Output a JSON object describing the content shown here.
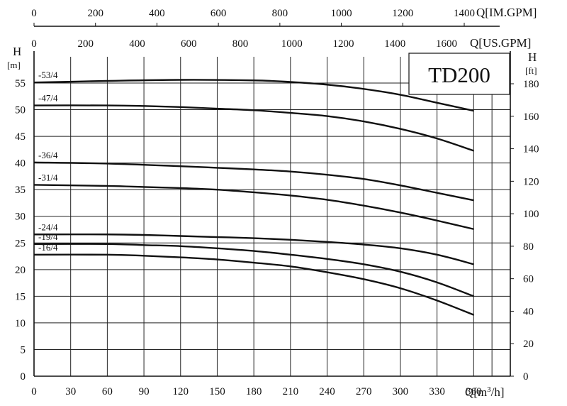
{
  "chart_data": {
    "type": "line",
    "title": "TD200",
    "xlabel": "Q[m³/h]",
    "xlabel_main": "Q[m",
    "xlabel_sup": "3",
    "xlabel_tail": "/h]",
    "ylabel": "H",
    "ylabel_unit": "[m]",
    "y2label": "H",
    "y2label_unit": "[ft]",
    "top_axis_label": "Q[IM.GPM]",
    "second_axis_label": "Q[US.GPM]",
    "xlim": [
      0,
      390
    ],
    "ylim": [
      0,
      60
    ],
    "x_ticks": [
      0,
      30,
      60,
      90,
      120,
      150,
      180,
      210,
      240,
      270,
      300,
      330,
      360
    ],
    "y_ticks": [
      0,
      5,
      10,
      15,
      20,
      25,
      30,
      35,
      40,
      45,
      50,
      55
    ],
    "ft_ticks": [
      0,
      20,
      40,
      60,
      80,
      100,
      120,
      140,
      160,
      180
    ],
    "us_gpm_ticks": [
      0,
      200,
      400,
      600,
      800,
      1000,
      1200,
      1400,
      1600
    ],
    "im_gpm_ticks": [
      0,
      200,
      400,
      600,
      800,
      1000,
      1200,
      1400
    ],
    "grid": true,
    "series": [
      {
        "name": "-53/4",
        "x": [
          0,
          60,
          120,
          180,
          210,
          240,
          270,
          300,
          330,
          360
        ],
        "y": [
          55.1,
          55.4,
          55.6,
          55.5,
          55.2,
          54.7,
          53.9,
          52.8,
          51.3,
          49.8
        ]
      },
      {
        "name": "-47/4",
        "x": [
          0,
          60,
          90,
          120,
          150,
          180,
          210,
          240,
          270,
          300,
          330,
          360
        ],
        "y": [
          50.8,
          50.8,
          50.7,
          50.5,
          50.2,
          49.9,
          49.4,
          48.8,
          47.8,
          46.4,
          44.6,
          42.3
        ]
      },
      {
        "name": "-36/4",
        "x": [
          0,
          60,
          120,
          150,
          180,
          210,
          240,
          270,
          300,
          330,
          360
        ],
        "y": [
          40.1,
          39.9,
          39.4,
          39.1,
          38.8,
          38.4,
          37.8,
          37.0,
          35.8,
          34.4,
          33.0
        ]
      },
      {
        "name": "-31/4",
        "x": [
          0,
          60,
          90,
          120,
          150,
          180,
          210,
          240,
          270,
          300,
          330,
          360
        ],
        "y": [
          35.9,
          35.7,
          35.5,
          35.3,
          35.0,
          34.5,
          33.9,
          33.1,
          32.0,
          30.7,
          29.2,
          27.6
        ]
      },
      {
        "name": "-24/4",
        "x": [
          0,
          60,
          90,
          120,
          150,
          180,
          210,
          240,
          270,
          300,
          330,
          360
        ],
        "y": [
          26.6,
          26.6,
          26.5,
          26.3,
          26.1,
          25.9,
          25.6,
          25.2,
          24.7,
          24.0,
          22.8,
          21.0
        ]
      },
      {
        "name": "-19/4",
        "x": [
          0,
          60,
          90,
          120,
          150,
          180,
          210,
          240,
          270,
          300,
          330,
          360
        ],
        "y": [
          24.8,
          24.8,
          24.6,
          24.4,
          24.0,
          23.5,
          22.8,
          22.0,
          21.0,
          19.6,
          17.6,
          15.0
        ]
      },
      {
        "name": "-16/4",
        "x": [
          0,
          60,
          90,
          120,
          150,
          180,
          210,
          240,
          270,
          300,
          330,
          360
        ],
        "y": [
          22.8,
          22.8,
          22.6,
          22.3,
          21.9,
          21.3,
          20.6,
          19.5,
          18.2,
          16.5,
          14.2,
          11.5
        ]
      }
    ]
  }
}
